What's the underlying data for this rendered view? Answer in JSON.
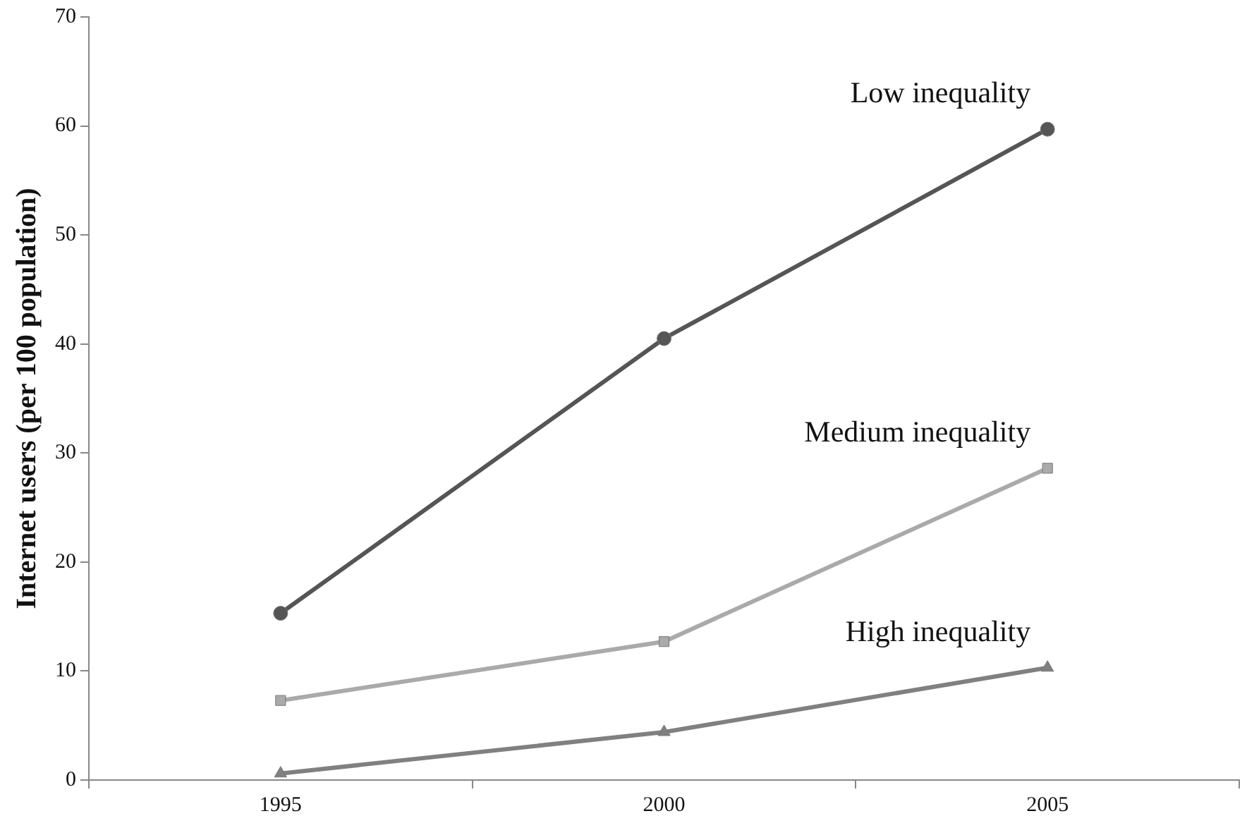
{
  "chart_data": {
    "type": "line",
    "ylabel": "Internet users (per 100 population)",
    "categories": [
      "1995",
      "2000",
      "2005"
    ],
    "series": [
      {
        "name": "Low inequality",
        "color": "#555555",
        "marker": "circle",
        "values": [
          15.3,
          40.5,
          59.7
        ]
      },
      {
        "name": "Medium inequality",
        "color": "#aaaaaa",
        "marker": "square",
        "values": [
          7.3,
          12.7,
          28.6
        ]
      },
      {
        "name": "High inequality",
        "color": "#808080",
        "marker": "triangle",
        "values": [
          0.6,
          4.4,
          10.3
        ]
      }
    ],
    "ylim": [
      0,
      70
    ],
    "yticks": [
      0,
      10,
      20,
      30,
      40,
      50,
      60,
      70
    ],
    "grid": false,
    "legend": false
  }
}
